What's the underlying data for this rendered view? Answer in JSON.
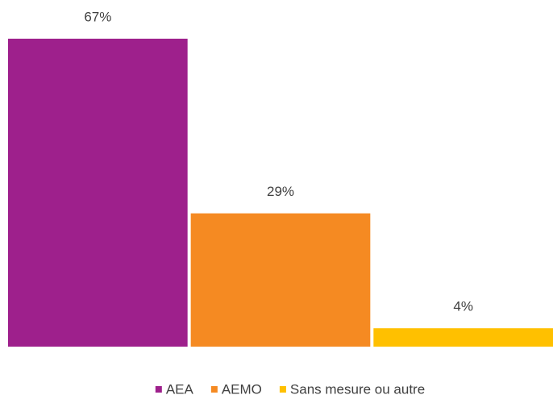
{
  "chart_data": {
    "type": "bar",
    "categories": [
      null
    ],
    "series": [
      {
        "name": "AEA",
        "color": "#9e208c",
        "values": [
          67
        ],
        "value_labels": [
          "67%"
        ]
      },
      {
        "name": "AEMO",
        "color": "#f58a22",
        "values": [
          29
        ],
        "value_labels": [
          "29%"
        ]
      },
      {
        "name": "Sans mesure ou autre",
        "color": "#ffc000",
        "values": [
          4
        ],
        "value_labels": [
          "4%"
        ]
      }
    ],
    "legend": "bottom"
  }
}
